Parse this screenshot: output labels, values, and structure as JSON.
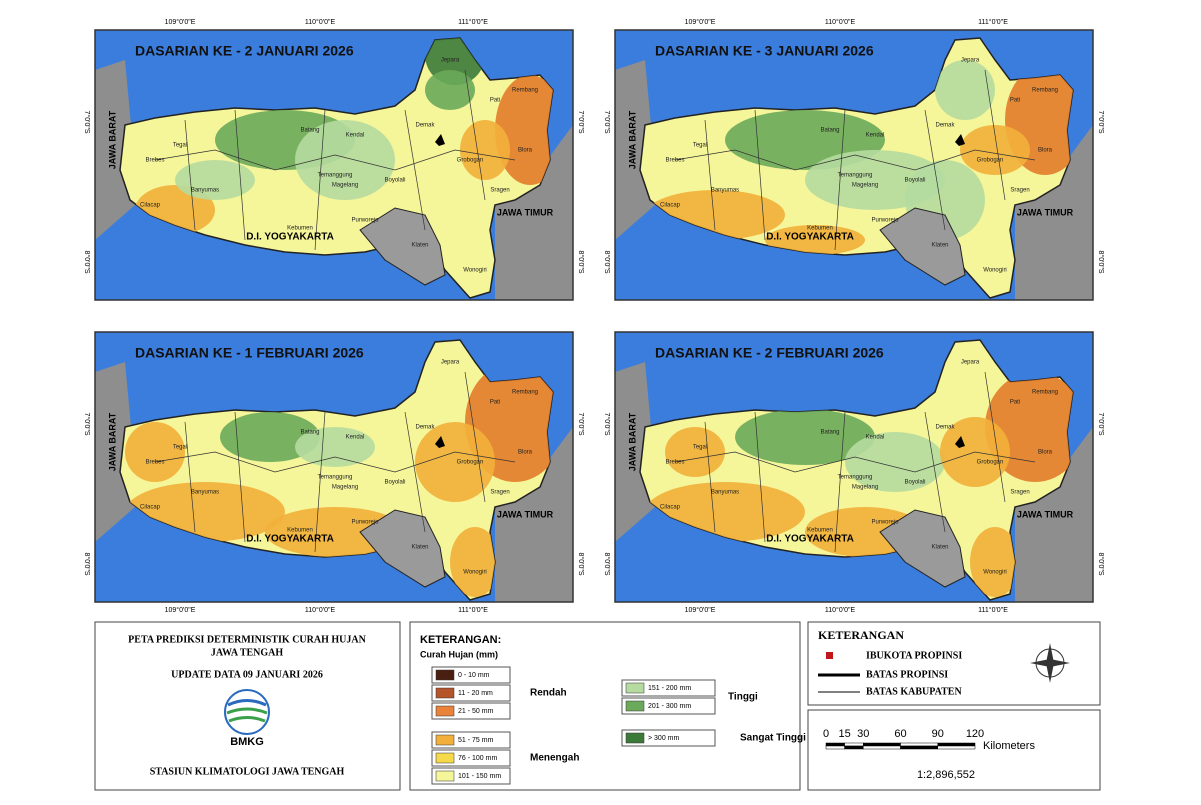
{
  "panels": [
    {
      "title": "DASARIAN KE - 2 JANUARI 2026"
    },
    {
      "title": "DASARIAN KE - 3  JANUARI 2026"
    },
    {
      "title": "DASARIAN KE - 1 FEBRUARI 2026"
    },
    {
      "title": "DASARIAN KE - 2 FEBRUARI 2026"
    }
  ],
  "map_labels": {
    "west": "JAWA BARAT",
    "east": "JAWA TIMUR",
    "south": "D.I. YOGYAKARTA"
  },
  "districts": [
    "Jepara",
    "Pati",
    "Rembang",
    "Blora",
    "Grobogan",
    "Demak",
    "Kendal",
    "Batang",
    "Tegal",
    "Brebes",
    "Cilacap",
    "Banyumas",
    "Kebumen",
    "Purworejo",
    "Magelang",
    "Sragen",
    "Wonogiri",
    "Klaten",
    "Temanggung",
    "Boyolali"
  ],
  "graticule": {
    "longitudes": [
      "109°0'0\"E",
      "110°0'0\"E",
      "111°0'0\"E"
    ],
    "latitudes": [
      "7°0'0\"S",
      "8°0'0\"S"
    ]
  },
  "info_box": {
    "title_line1": "PETA PREDIKSI DETERMINISTIK CURAH HUJAN",
    "title_line2": "JAWA TENGAH",
    "update": "UPDATE DATA 09 JANUARI 2026",
    "logo_text": "BMKG",
    "station": "STASIUN KLIMATOLOGI JAWA TENGAH"
  },
  "rain_legend": {
    "title": "KETERANGAN:",
    "subtitle": "Curah Hujan (mm)",
    "groups": [
      {
        "name": "Rendah",
        "classes": [
          {
            "label": "0 - 10 mm",
            "color": "#4a1e10"
          },
          {
            "label": "11 - 20 mm",
            "color": "#b5532a"
          },
          {
            "label": "21 - 50 mm",
            "color": "#e9823a"
          }
        ]
      },
      {
        "name": "Menengah",
        "classes": [
          {
            "label": "51 - 75 mm",
            "color": "#f2b03a"
          },
          {
            "label": "76 - 100 mm",
            "color": "#f6d94a"
          },
          {
            "label": "101 - 150 mm",
            "color": "#f5f59a"
          }
        ]
      },
      {
        "name": "Tinggi",
        "classes": [
          {
            "label": "151 - 200 mm",
            "color": "#b5dba0"
          },
          {
            "label": "201 - 300 mm",
            "color": "#6aaa5a"
          }
        ]
      },
      {
        "name": "Sangat Tinggi",
        "classes": [
          {
            "label": "> 300 mm",
            "color": "#3c7a3a"
          }
        ]
      }
    ]
  },
  "symbol_legend": {
    "title": "KETERANGAN",
    "items": [
      "IBUKOTA PROPINSI",
      "BATAS PROPINSI",
      "BATAS KABUPATEN"
    ]
  },
  "scale": {
    "ticks": [
      0,
      15,
      30,
      60,
      90,
      120
    ],
    "unit": "Kilometers",
    "ratio": "1:2,896,552"
  }
}
